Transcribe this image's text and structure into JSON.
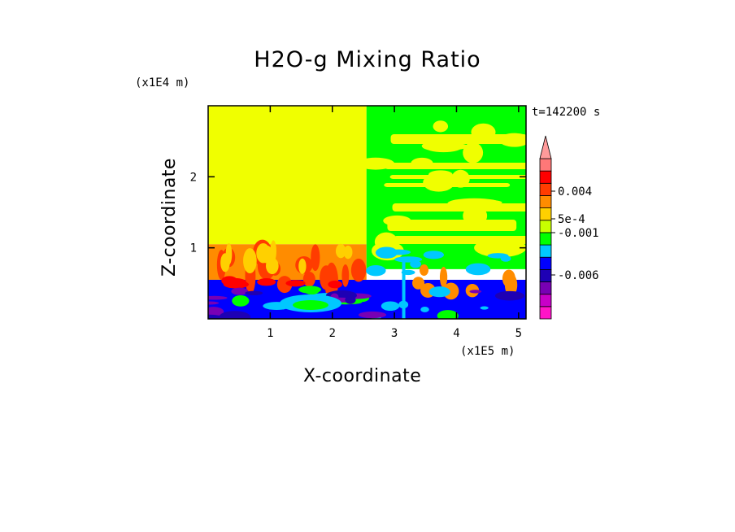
{
  "chart_data": {
    "type": "heatmap",
    "title": "H2O-g Mixing Ratio",
    "xlabel": "X-coordinate",
    "ylabel": "Z-coordinate",
    "x_unit": "(x1E5 m)",
    "y_unit": "(x1E4 m)",
    "time_label": "t=142200 s",
    "xlim": [
      0,
      5.12
    ],
    "ylim": [
      0,
      3.0
    ],
    "x_ticks": [
      1,
      2,
      3,
      4,
      5
    ],
    "y_ticks": [
      1,
      2
    ],
    "colorbar": {
      "colors": [
        "#ff14c8",
        "#c800c8",
        "#7800b4",
        "#1e00b4",
        "#0000ff",
        "#00c8ff",
        "#00ff00",
        "#c8ff00",
        "#ffd000",
        "#ff8c00",
        "#ff3c00",
        "#ff0000",
        "#ff7878"
      ],
      "labels": [
        "0.004",
        "5e-4",
        "-0.001",
        "-0.006"
      ],
      "extend": "max"
    },
    "regions": [
      {
        "name": "upper-left",
        "x": [
          0,
          2.55
        ],
        "z": [
          1.05,
          3.0
        ],
        "color": "#f0ff00"
      },
      {
        "name": "lower-left-boundary",
        "x": [
          0,
          2.55
        ],
        "z": [
          0.55,
          1.05
        ],
        "color": "#ff8c00"
      },
      {
        "name": "upper-right",
        "x": [
          2.55,
          5.12
        ],
        "z": [
          0.7,
          3.0
        ],
        "color": "#00ff00"
      },
      {
        "name": "bottom-layer",
        "x": [
          0,
          5.12
        ],
        "z": [
          0,
          0.55
        ],
        "color": "#0000ff"
      }
    ]
  }
}
